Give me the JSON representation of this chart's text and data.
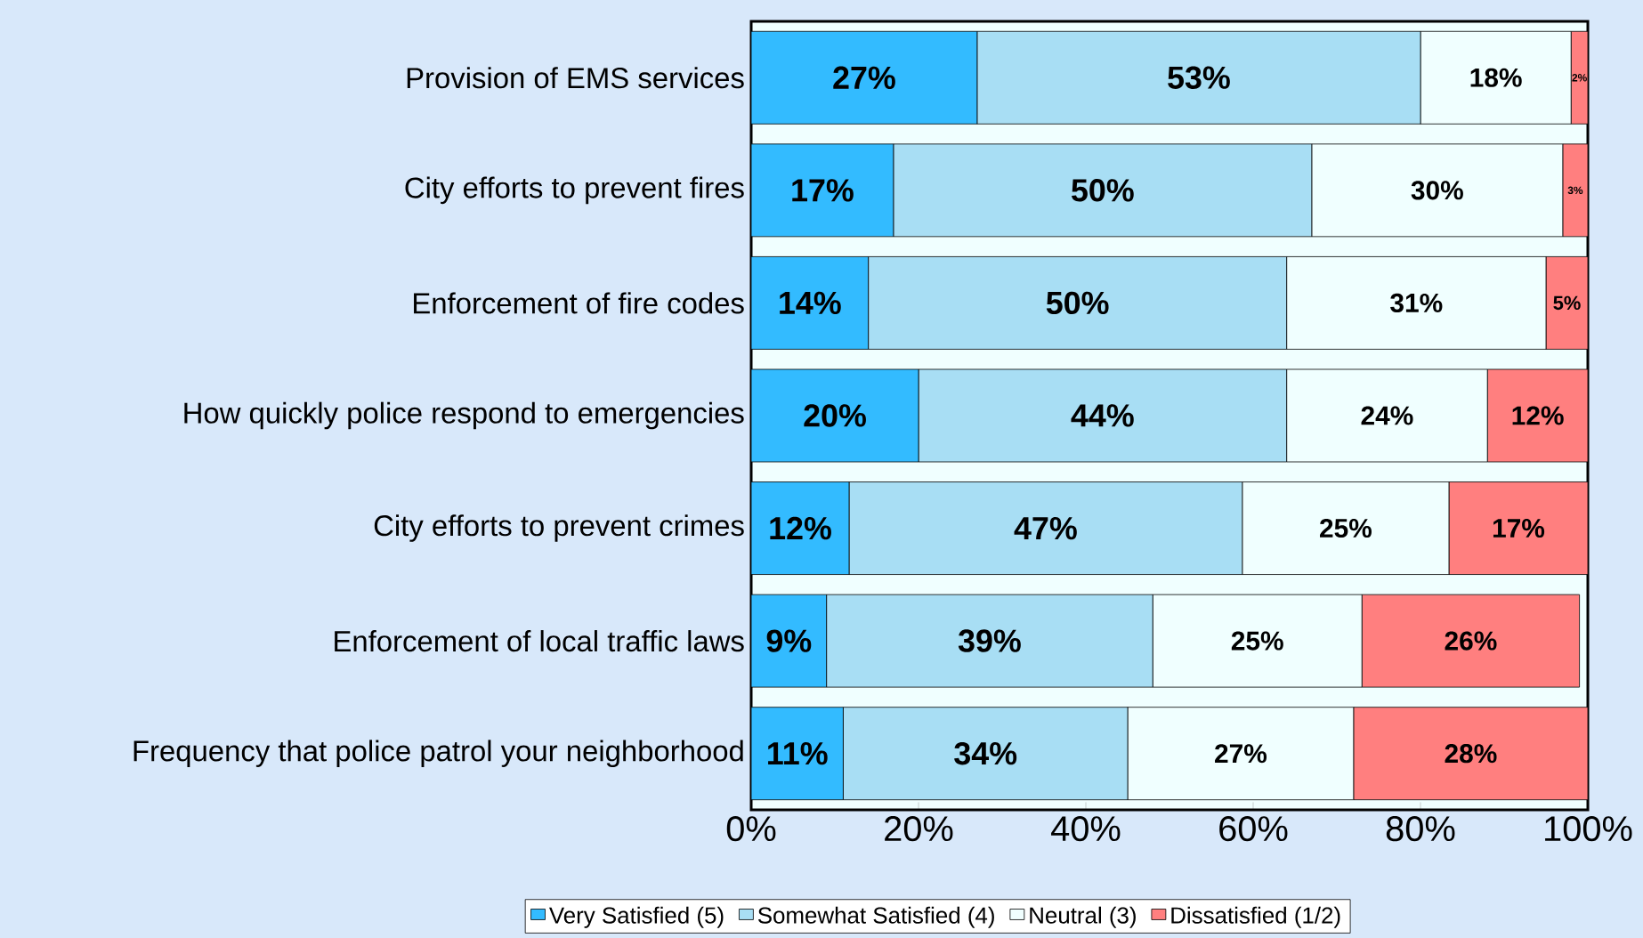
{
  "chart_data": {
    "type": "bar",
    "orientation": "horizontal",
    "stacked": true,
    "categories": [
      "Provision of EMS services",
      "City efforts to prevent fires",
      "Enforcement of fire codes",
      "How quickly police respond to emergencies",
      "City efforts to prevent crimes",
      "Enforcement of local traffic laws",
      "Frequency that police patrol your neighborhood"
    ],
    "series": [
      {
        "name": "Very Satisfied (5)",
        "color": "#33bbff",
        "values": [
          27,
          17,
          14,
          20,
          11.7,
          9,
          11
        ],
        "value_labels": [
          "27%",
          "17%",
          "14%",
          "20%",
          "12%",
          "9%",
          "11%"
        ]
      },
      {
        "name": "Somewhat Satisfied (4)",
        "color": "#a8def4",
        "values": [
          53,
          50,
          50,
          44,
          47,
          39,
          34
        ],
        "value_labels": [
          "53%",
          "50%",
          "50%",
          "44%",
          "47%",
          "39%",
          "34%"
        ]
      },
      {
        "name": "Neutral (3)",
        "color": "#f0ffff",
        "values": [
          18,
          30,
          31,
          24,
          24.7,
          25,
          27
        ],
        "value_labels": [
          "18%",
          "30%",
          "31%",
          "24%",
          "25%",
          "25%",
          "27%"
        ]
      },
      {
        "name": "Dissatisfied (1/2)",
        "color": "#ff7f7f",
        "values": [
          2,
          3,
          5,
          12,
          16.6,
          26,
          28
        ],
        "value_labels": [
          "2%",
          "3%",
          "5%",
          "12%",
          "17%",
          "26%",
          "28%"
        ]
      }
    ],
    "xlim": [
      0,
      100
    ],
    "xticks": [
      {
        "value": 0,
        "label": "0%"
      },
      {
        "value": 20,
        "label": "20%"
      },
      {
        "value": 40,
        "label": "40%"
      },
      {
        "value": 60,
        "label": "60%"
      },
      {
        "value": 80,
        "label": "80%"
      },
      {
        "value": 100,
        "label": "100%"
      }
    ],
    "legend": "bottom",
    "grid": false
  }
}
